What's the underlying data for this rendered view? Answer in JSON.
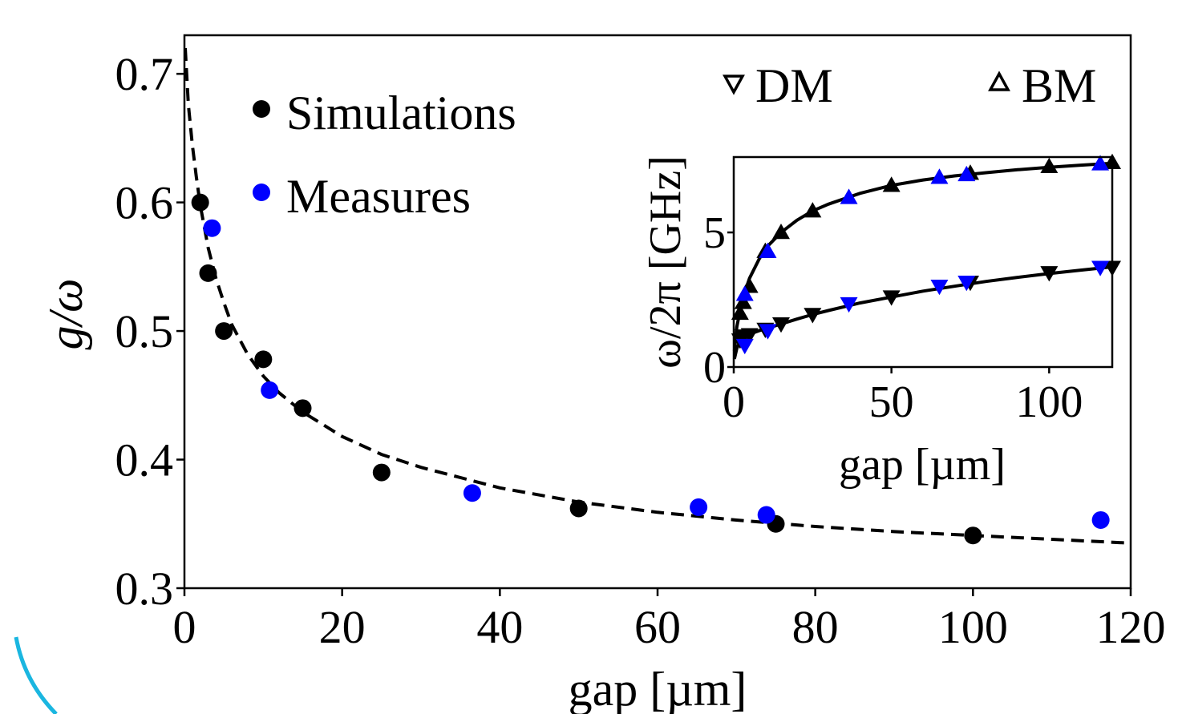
{
  "chart_data": [
    {
      "type": "scatter",
      "title": "",
      "xlabel": "gap [µm]",
      "ylabel": "g/ω",
      "xlim": [
        0,
        120
      ],
      "ylim": [
        0.3,
        0.73
      ],
      "xticks": [
        "0",
        "20",
        "40",
        "60",
        "80",
        "100",
        "120"
      ],
      "yticks": [
        "0.3",
        "0.4",
        "0.5",
        "0.6",
        "0.7"
      ],
      "xtick_values": [
        0,
        20,
        40,
        60,
        80,
        100,
        120
      ],
      "ytick_values": [
        0.3,
        0.4,
        0.5,
        0.6,
        0.7
      ],
      "grid": false,
      "legend_position": "top-left",
      "series": [
        {
          "name": "Simulations",
          "color": "#000000",
          "marker": "circle",
          "x": [
            2,
            3,
            5,
            10,
            15,
            25,
            50,
            75,
            100
          ],
          "y": [
            0.6,
            0.545,
            0.5,
            0.478,
            0.44,
            0.39,
            0.362,
            0.35,
            0.341
          ]
        },
        {
          "name": "Measures",
          "color": "#0000ff",
          "marker": "circle",
          "x": [
            3.5,
            10.8,
            36.5,
            65.2,
            73.8,
            116.2
          ],
          "y": [
            0.58,
            0.454,
            0.374,
            0.363,
            0.357,
            0.353
          ]
        },
        {
          "type": "line",
          "style": "dashed",
          "color": "#000000",
          "x": [
            0.1,
            0.5,
            1,
            1.5,
            2,
            3,
            4,
            5,
            6,
            8,
            10,
            12,
            15,
            20,
            25,
            30,
            40,
            50,
            60,
            70,
            80,
            90,
            100,
            110,
            120
          ],
          "y": [
            0.72,
            0.676,
            0.645,
            0.62,
            0.598,
            0.565,
            0.541,
            0.522,
            0.505,
            0.482,
            0.465,
            0.452,
            0.437,
            0.418,
            0.404,
            0.394,
            0.378,
            0.367,
            0.359,
            0.353,
            0.348,
            0.344,
            0.341,
            0.338,
            0.335
          ]
        }
      ]
    },
    {
      "type": "scatter",
      "title": "",
      "xlabel": "gap [µm]",
      "ylabel": "ω/2π [GHz]",
      "xlim": [
        0,
        120
      ],
      "ylim": [
        0,
        7.8
      ],
      "xticks": [
        "0",
        "50",
        "100"
      ],
      "yticks": [
        "0",
        "5"
      ],
      "xtick_values": [
        0,
        50,
        100
      ],
      "ytick_values": [
        0,
        5
      ],
      "grid": false,
      "legend_entries": [
        {
          "name": "DM",
          "marker": "triangle-down"
        },
        {
          "name": "BM",
          "marker": "triangle-up"
        }
      ],
      "series": [
        {
          "name": "BM simulations",
          "color": "#000000",
          "marker": "triangle-up",
          "x": [
            2,
            3,
            5,
            10,
            15,
            25,
            50,
            75,
            100,
            120
          ],
          "y": [
            2.0,
            2.4,
            3.0,
            4.3,
            5.0,
            5.8,
            6.75,
            7.2,
            7.45,
            7.6
          ]
        },
        {
          "name": "BM measures",
          "color": "#0000ff",
          "marker": "triangle-up",
          "x": [
            3.5,
            10.8,
            36.5,
            65.2,
            73.8,
            116.2
          ],
          "y": [
            2.7,
            4.3,
            6.3,
            7.05,
            7.15,
            7.55
          ]
        },
        {
          "name": "DM simulations",
          "color": "#000000",
          "marker": "triangle-down",
          "x": [
            2,
            3,
            5,
            10,
            15,
            25,
            50,
            75,
            100,
            120
          ],
          "y": [
            1.0,
            1.15,
            1.2,
            1.4,
            1.6,
            1.95,
            2.6,
            3.15,
            3.5,
            3.7
          ]
        },
        {
          "name": "DM measures",
          "color": "#0000ff",
          "marker": "triangle-down",
          "x": [
            3.5,
            10.8,
            36.5,
            65.2,
            73.8,
            116.2
          ],
          "y": [
            0.8,
            1.35,
            2.35,
            3.0,
            3.15,
            3.7
          ]
        },
        {
          "type": "line",
          "style": "solid",
          "color": "#000000",
          "x": [
            0.2,
            1,
            2,
            3,
            5,
            8,
            10,
            15,
            20,
            25,
            30,
            40,
            50,
            60,
            70,
            80,
            90,
            100,
            110,
            120
          ],
          "y": [
            0.6,
            1.5,
            2.1,
            2.6,
            3.3,
            4.0,
            4.4,
            5.0,
            5.45,
            5.8,
            6.05,
            6.45,
            6.75,
            6.95,
            7.1,
            7.22,
            7.33,
            7.42,
            7.5,
            7.57
          ]
        },
        {
          "type": "line",
          "style": "solid",
          "color": "#000000",
          "x": [
            0.2,
            1,
            2,
            3,
            5,
            8,
            10,
            15,
            20,
            25,
            30,
            40,
            50,
            60,
            70,
            80,
            90,
            100,
            110,
            120
          ],
          "y": [
            0.3,
            0.7,
            0.95,
            1.08,
            1.22,
            1.35,
            1.42,
            1.6,
            1.78,
            1.95,
            2.1,
            2.38,
            2.6,
            2.82,
            3.0,
            3.18,
            3.33,
            3.47,
            3.6,
            3.72
          ]
        }
      ]
    }
  ]
}
